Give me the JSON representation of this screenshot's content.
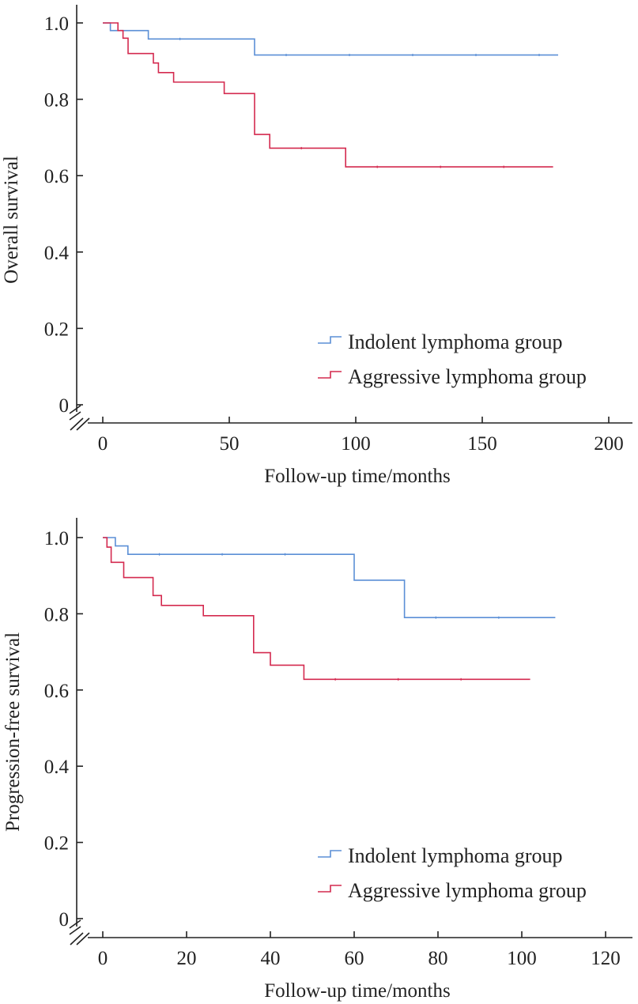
{
  "chart_data": [
    {
      "type": "line",
      "step": true,
      "xlabel": "Follow-up time/months",
      "ylabel": "Overall survival",
      "xlim": [
        0,
        210
      ],
      "ylim": [
        0,
        1.05
      ],
      "xticks": [
        0,
        50,
        100,
        150,
        200
      ],
      "yticks": [
        0,
        0.2,
        0.4,
        0.6,
        0.8,
        1.0
      ],
      "ytick_labels": [
        "0",
        "0.2",
        "0.4",
        "0.6",
        "0.8",
        "1.0"
      ],
      "axis_break": true,
      "legend_position": "lower-right",
      "series": [
        {
          "name": "Indolent lymphoma group",
          "color": "#5b8fd6",
          "x": [
            0,
            3,
            18,
            60,
            180
          ],
          "y": [
            1.0,
            0.98,
            0.958,
            0.916,
            0.916
          ]
        },
        {
          "name": "Aggressive lymphoma group",
          "color": "#d42a4f",
          "x": [
            0,
            6,
            8,
            10,
            20,
            22,
            28,
            48,
            60,
            66,
            96,
            178
          ],
          "y": [
            1.0,
            0.98,
            0.96,
            0.92,
            0.895,
            0.87,
            0.845,
            0.815,
            0.708,
            0.672,
            0.623,
            0.623
          ]
        }
      ]
    },
    {
      "type": "line",
      "step": true,
      "xlabel": "Follow-up time/months",
      "ylabel": "Progression-free survival",
      "xlim": [
        0,
        126
      ],
      "ylim": [
        0,
        1.05
      ],
      "xticks": [
        0,
        20,
        40,
        60,
        80,
        100,
        120
      ],
      "yticks": [
        0,
        0.2,
        0.4,
        0.6,
        0.8,
        1.0
      ],
      "ytick_labels": [
        "0",
        "0.2",
        "0.4",
        "0.6",
        "0.8",
        "1.0"
      ],
      "axis_break": true,
      "legend_position": "lower-right",
      "series": [
        {
          "name": "Indolent lymphoma group",
          "color": "#5b8fd6",
          "x": [
            0,
            3,
            6,
            60,
            72,
            108
          ],
          "y": [
            1.0,
            0.978,
            0.956,
            0.888,
            0.79,
            0.79
          ]
        },
        {
          "name": "Aggressive lymphoma group",
          "color": "#d42a4f",
          "x": [
            0,
            1,
            2,
            5,
            12,
            14,
            24,
            36,
            40,
            48,
            102
          ],
          "y": [
            1.0,
            0.975,
            0.935,
            0.895,
            0.848,
            0.822,
            0.795,
            0.698,
            0.665,
            0.628,
            0.628
          ]
        }
      ]
    }
  ]
}
